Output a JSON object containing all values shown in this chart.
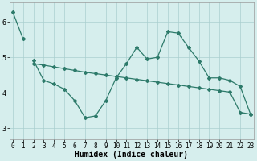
{
  "line1": {
    "x": [
      0,
      1
    ],
    "y": [
      6.28,
      5.52
    ]
  },
  "line2": {
    "x": [
      2,
      3,
      4,
      5,
      6,
      7,
      8,
      9,
      10,
      11,
      12,
      13,
      14,
      15,
      16,
      17,
      18,
      19,
      20,
      21,
      22,
      23
    ],
    "y": [
      4.92,
      4.35,
      4.25,
      4.1,
      3.78,
      3.3,
      3.35,
      3.78,
      4.42,
      4.82,
      5.28,
      4.95,
      5.0,
      5.72,
      5.68,
      5.28,
      4.9,
      4.42,
      4.42,
      4.35,
      4.18,
      3.4
    ]
  },
  "line3": {
    "x": [
      2,
      3,
      4,
      5,
      6,
      7,
      8,
      9,
      10,
      11,
      12,
      13,
      14,
      15,
      16,
      17,
      18,
      19,
      20,
      21,
      22,
      23
    ],
    "y": [
      4.82,
      4.78,
      4.73,
      4.68,
      4.63,
      4.58,
      4.54,
      4.5,
      4.46,
      4.42,
      4.38,
      4.34,
      4.3,
      4.26,
      4.22,
      4.18,
      4.14,
      4.1,
      4.06,
      4.02,
      3.45,
      3.4
    ]
  },
  "color": "#2d7a6a",
  "bg_color": "#d6eeed",
  "grid_color": "#aacfcf",
  "ylim": [
    2.7,
    6.55
  ],
  "yticks": [
    3,
    4,
    5,
    6
  ],
  "xlim": [
    -0.3,
    23.3
  ],
  "xticks": [
    0,
    1,
    2,
    3,
    4,
    5,
    6,
    7,
    8,
    9,
    10,
    11,
    12,
    13,
    14,
    15,
    16,
    17,
    18,
    19,
    20,
    21,
    22,
    23
  ],
  "xlabel": "Humidex (Indice chaleur)",
  "xlabel_fontsize": 7,
  "tick_fontsize": 5.5,
  "marker": "D",
  "markersize": 2.0,
  "linewidth": 0.9
}
